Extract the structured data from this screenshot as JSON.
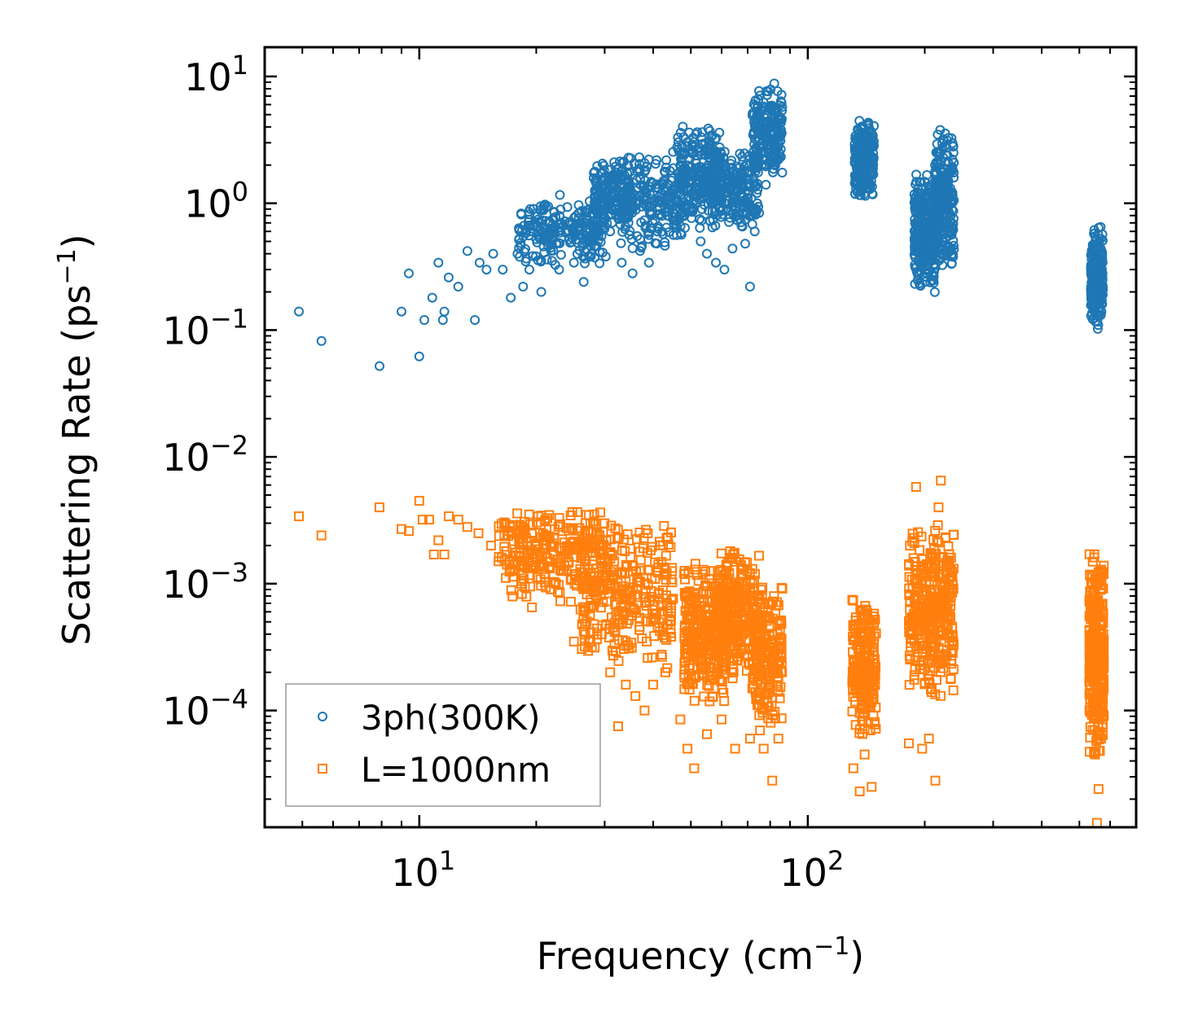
{
  "chart_data": {
    "type": "scatter",
    "xscale": "log",
    "yscale": "log",
    "xlabel": "Frequency (cm",
    "xlabel_sup": "−1",
    "xlabel_end": ")",
    "ylabel": "Scattering Rate (ps",
    "ylabel_sup": "−1",
    "ylabel_end": ")",
    "xlim": [
      4.0,
      700.0
    ],
    "ylim": [
      1.2e-05,
      17.0
    ],
    "x_ticks": [
      {
        "value": 10,
        "base": "10",
        "exp": "1"
      },
      {
        "value": 100,
        "base": "10",
        "exp": "2"
      }
    ],
    "y_ticks": [
      {
        "value": 10,
        "base": "10",
        "exp": "1"
      },
      {
        "value": 1,
        "base": "10",
        "exp": "0"
      },
      {
        "value": 0.1,
        "base": "10",
        "exp": "−1"
      },
      {
        "value": 0.01,
        "base": "10",
        "exp": "−2"
      },
      {
        "value": 0.001,
        "base": "10",
        "exp": "−3"
      },
      {
        "value": 0.0001,
        "base": "10",
        "exp": "−4"
      }
    ],
    "legend_position": "lower-left",
    "series": [
      {
        "name": "3ph(300K)",
        "marker": "circle",
        "color": "#1f77b4",
        "points": [
          [
            4.9,
            0.14
          ],
          [
            5.6,
            0.082
          ],
          [
            7.9,
            0.052
          ],
          [
            9.0,
            0.14
          ],
          [
            9.4,
            0.28
          ],
          [
            10.0,
            0.062
          ],
          [
            10.3,
            0.12
          ],
          [
            10.8,
            0.18
          ],
          [
            11.2,
            0.34
          ],
          [
            11.5,
            0.12
          ],
          [
            11.6,
            0.14
          ],
          [
            11.9,
            0.26
          ],
          [
            12.6,
            0.22
          ],
          [
            13.3,
            0.42
          ],
          [
            13.9,
            0.12
          ],
          [
            14.3,
            0.34
          ],
          [
            14.9,
            0.3
          ],
          [
            15.5,
            0.4
          ],
          [
            16.4,
            0.3
          ],
          [
            17.2,
            0.18
          ],
          [
            17.9,
            0.4
          ],
          [
            18.5,
            0.22
          ],
          [
            19.2,
            0.3
          ],
          [
            20.0,
            0.52
          ],
          [
            20.6,
            0.2
          ],
          [
            21.3,
            0.36
          ],
          [
            22.1,
            0.64
          ],
          [
            22.9,
            0.3
          ],
          [
            23.7,
            0.72
          ],
          [
            25.0,
            0.34
          ],
          [
            26.5,
            0.24
          ],
          [
            27.9,
            0.5
          ],
          [
            29.4,
            0.82
          ],
          [
            30.2,
            0.38
          ],
          [
            31.0,
            0.6
          ],
          [
            33.2,
            0.34
          ],
          [
            35.4,
            0.28
          ],
          [
            37.0,
            0.42
          ],
          [
            39.0,
            0.34
          ],
          [
            41.0,
            0.6
          ],
          [
            43.5,
            0.8
          ],
          [
            46.0,
            0.56
          ],
          [
            53.0,
            0.5
          ],
          [
            55.0,
            0.4
          ],
          [
            58.0,
            0.34
          ],
          [
            61.0,
            0.3
          ],
          [
            64.0,
            0.44
          ],
          [
            69.0,
            0.48
          ],
          [
            71.0,
            0.22
          ],
          [
            73.0,
            0.6
          ],
          [
            78.0,
            1.4
          ],
          [
            80.0,
            2.2
          ],
          [
            82.0,
            8.8
          ],
          [
            84.0,
            4.8
          ],
          [
            76.0,
            3.6
          ]
        ],
        "clusters": [
          {
            "x": [
              18.0,
              30.0
            ],
            "y": [
              0.3,
              1.2
            ],
            "n": 230
          },
          {
            "x": [
              28.0,
              35.0
            ],
            "y": [
              0.6,
              2.4
            ],
            "n": 160
          },
          {
            "x": [
              33.0,
              48.0
            ],
            "y": [
              0.4,
              2.8
            ],
            "n": 210
          },
          {
            "x": [
              46.0,
              60.0
            ],
            "y": [
              0.6,
              4.2
            ],
            "n": 280
          },
          {
            "x": [
              57.0,
              75.0
            ],
            "y": [
              0.6,
              2.8
            ],
            "n": 220
          },
          {
            "x": [
              72.0,
              86.0
            ],
            "y": [
              1.6,
              8.5
            ],
            "n": 210
          },
          {
            "x": [
              132.0,
              148.0
            ],
            "y": [
              1.0,
              5.0
            ],
            "n": 220
          },
          {
            "x": [
              188.0,
              215.0
            ],
            "y": [
              0.18,
              1.9
            ],
            "n": 300
          },
          {
            "x": [
              212.0,
              238.0
            ],
            "y": [
              0.28,
              4.0
            ],
            "n": 240
          },
          {
            "x": [
              535.0,
              575.0
            ],
            "y": [
              0.1,
              0.68
            ],
            "n": 280
          }
        ]
      },
      {
        "name": "L=1000nm",
        "marker": "square",
        "color": "#ff7f0e",
        "points": [
          [
            4.9,
            0.0034
          ],
          [
            5.6,
            0.0024
          ],
          [
            7.9,
            0.004
          ],
          [
            9.0,
            0.0027
          ],
          [
            9.4,
            0.0026
          ],
          [
            10.0,
            0.0045
          ],
          [
            10.2,
            0.0032
          ],
          [
            10.6,
            0.0032
          ],
          [
            10.9,
            0.0017
          ],
          [
            11.2,
            0.0022
          ],
          [
            11.6,
            0.0017
          ],
          [
            11.9,
            0.0034
          ],
          [
            12.6,
            0.0032
          ],
          [
            13.3,
            0.0028
          ],
          [
            14.2,
            0.0025
          ],
          [
            15.3,
            0.002
          ],
          [
            16.0,
            0.0015
          ],
          [
            17.1,
            0.0015
          ],
          [
            18.3,
            0.001
          ],
          [
            19.5,
            0.00065
          ],
          [
            21.0,
            0.0012
          ],
          [
            23.0,
            0.00085
          ],
          [
            25.0,
            0.00035
          ],
          [
            26.5,
            0.00042
          ],
          [
            29.5,
            0.0004
          ],
          [
            31.0,
            0.0002
          ],
          [
            32.5,
            7.5e-05
          ],
          [
            34.0,
            0.00016
          ],
          [
            36.0,
            0.00013
          ],
          [
            38.0,
            0.0001
          ],
          [
            40.0,
            0.00016
          ],
          [
            43.0,
            0.0002
          ],
          [
            47.0,
            8.5e-05
          ],
          [
            49.0,
            5e-05
          ],
          [
            51.0,
            3.5e-05
          ],
          [
            55.0,
            6.5e-05
          ],
          [
            60.0,
            8.5e-05
          ],
          [
            65.0,
            5e-05
          ],
          [
            71.0,
            6e-05
          ],
          [
            77.0,
            5e-05
          ],
          [
            81.0,
            2.8e-05
          ],
          [
            84.0,
            6e-05
          ],
          [
            131.0,
            3.5e-05
          ],
          [
            136.0,
            2.3e-05
          ],
          [
            140.0,
            4.5e-05
          ],
          [
            146.0,
            2.5e-05
          ],
          [
            182.0,
            5.5e-05
          ],
          [
            190.0,
            0.0058
          ],
          [
            197.0,
            5e-05
          ],
          [
            205.0,
            6e-05
          ],
          [
            213.0,
            2.8e-05
          ],
          [
            220.0,
            0.0065
          ],
          [
            217.0,
            0.004
          ],
          [
            230.0,
            0.00055
          ],
          [
            555.0,
            1.3e-05
          ],
          [
            560.0,
            2.4e-05
          ]
        ],
        "clusters": [
          {
            "x": [
              16.0,
              30.0
            ],
            "y": [
              0.0007,
              0.0042
            ],
            "n": 260
          },
          {
            "x": [
              26.0,
              45.0
            ],
            "y": [
              0.0002,
              0.0036
            ],
            "n": 300
          },
          {
            "x": [
              48.0,
              62.0
            ],
            "y": [
              0.0001,
              0.0016
            ],
            "n": 300
          },
          {
            "x": [
              58.0,
              76.0
            ],
            "y": [
              0.00015,
              0.0021
            ],
            "n": 280
          },
          {
            "x": [
              72.0,
              86.0
            ],
            "y": [
              6e-05,
              0.0012
            ],
            "n": 200
          },
          {
            "x": [
              130.0,
              150.0
            ],
            "y": [
              6e-05,
              0.0009
            ],
            "n": 230
          },
          {
            "x": [
              182.0,
              238.0
            ],
            "y": [
              0.00012,
              0.0031
            ],
            "n": 360
          },
          {
            "x": [
              530.0,
              578.0
            ],
            "y": [
              4e-05,
              0.0021
            ],
            "n": 340
          }
        ]
      }
    ]
  }
}
